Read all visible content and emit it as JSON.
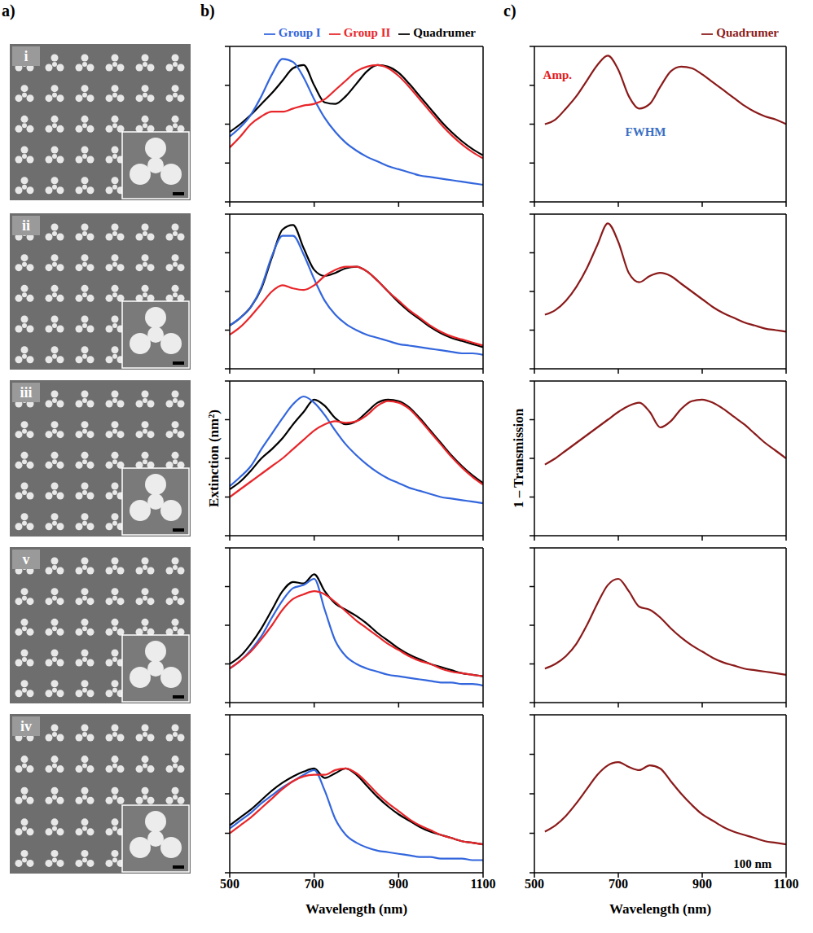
{
  "panel_labels": [
    "a)",
    "b)",
    "c)"
  ],
  "panel_a": {
    "images": [
      "i",
      "ii",
      "iii",
      "v",
      "iv"
    ]
  },
  "chart_data": [
    {
      "type": "line",
      "legend": "top right",
      "tick_labels": false,
      "xlim": [
        500,
        1100
      ],
      "xticks": [
        500,
        700,
        900,
        1100
      ],
      "ylim": [
        0,
        1
      ],
      "yticks": [
        0,
        0.25,
        0.5,
        0.75,
        1
      ],
      "x": [
        500,
        525,
        550,
        575,
        600,
        625,
        650,
        675,
        700,
        725,
        750,
        775,
        800,
        825,
        850,
        875,
        900,
        925,
        950,
        975,
        1000,
        1025,
        1050,
        1075,
        1100
      ],
      "series": [
        {
          "name": "Quadrumer",
          "color": "#000000",
          "values": [
            0.45,
            0.5,
            0.56,
            0.63,
            0.7,
            0.78,
            0.86,
            0.88,
            0.75,
            0.64,
            0.63,
            0.68,
            0.76,
            0.84,
            0.88,
            0.87,
            0.83,
            0.76,
            0.68,
            0.6,
            0.52,
            0.45,
            0.39,
            0.34,
            0.3
          ]
        },
        {
          "name": "Group I",
          "color": "#3366dd",
          "values": [
            0.42,
            0.48,
            0.56,
            0.68,
            0.82,
            0.92,
            0.9,
            0.8,
            0.66,
            0.54,
            0.45,
            0.38,
            0.33,
            0.29,
            0.26,
            0.23,
            0.21,
            0.19,
            0.17,
            0.16,
            0.15,
            0.14,
            0.13,
            0.12,
            0.11
          ]
        },
        {
          "name": "Group II",
          "color": "#e8262a",
          "values": [
            0.35,
            0.42,
            0.5,
            0.55,
            0.58,
            0.58,
            0.6,
            0.62,
            0.63,
            0.66,
            0.72,
            0.78,
            0.84,
            0.87,
            0.88,
            0.86,
            0.81,
            0.74,
            0.66,
            0.58,
            0.5,
            0.43,
            0.37,
            0.32,
            0.28
          ]
        }
      ]
    },
    {
      "type": "line",
      "tick_labels": false,
      "xlim": [
        500,
        1100
      ],
      "xticks": [
        500,
        700,
        900,
        1100
      ],
      "ylim": [
        0,
        1
      ],
      "yticks": [
        0,
        0.25,
        0.5,
        0.75,
        1
      ],
      "x": [
        500,
        525,
        550,
        575,
        600,
        625,
        650,
        675,
        700,
        725,
        750,
        775,
        800,
        825,
        850,
        875,
        900,
        925,
        950,
        975,
        1000,
        1025,
        1050,
        1075,
        1100
      ],
      "series": [
        {
          "name": "Quadrumer",
          "color": "#000000",
          "values": [
            0.28,
            0.33,
            0.4,
            0.52,
            0.72,
            0.9,
            0.93,
            0.78,
            0.64,
            0.6,
            0.62,
            0.65,
            0.66,
            0.63,
            0.57,
            0.5,
            0.43,
            0.37,
            0.32,
            0.27,
            0.23,
            0.2,
            0.18,
            0.16,
            0.14
          ]
        },
        {
          "name": "Group I",
          "color": "#3366dd",
          "values": [
            0.28,
            0.33,
            0.4,
            0.53,
            0.73,
            0.86,
            0.86,
            0.74,
            0.58,
            0.44,
            0.35,
            0.29,
            0.25,
            0.22,
            0.2,
            0.18,
            0.16,
            0.15,
            0.14,
            0.13,
            0.12,
            0.11,
            0.1,
            0.1,
            0.09
          ]
        },
        {
          "name": "Group II",
          "color": "#e8262a",
          "values": [
            0.22,
            0.27,
            0.34,
            0.42,
            0.5,
            0.54,
            0.52,
            0.51,
            0.54,
            0.6,
            0.64,
            0.66,
            0.66,
            0.63,
            0.57,
            0.5,
            0.44,
            0.38,
            0.33,
            0.28,
            0.24,
            0.21,
            0.19,
            0.17,
            0.15
          ]
        }
      ]
    },
    {
      "type": "line",
      "tick_labels": false,
      "ylabel": "Extinction (nm²)",
      "xlim": [
        500,
        1100
      ],
      "xticks": [
        500,
        700,
        900,
        1100
      ],
      "ylim": [
        0,
        1
      ],
      "yticks": [
        0,
        0.25,
        0.5,
        0.75,
        1
      ],
      "x": [
        500,
        525,
        550,
        575,
        600,
        625,
        650,
        675,
        700,
        725,
        750,
        775,
        800,
        825,
        850,
        875,
        900,
        925,
        950,
        975,
        1000,
        1025,
        1050,
        1075,
        1100
      ],
      "series": [
        {
          "name": "Quadrumer",
          "color": "#000000",
          "values": [
            0.3,
            0.35,
            0.42,
            0.5,
            0.56,
            0.63,
            0.72,
            0.8,
            0.88,
            0.84,
            0.76,
            0.72,
            0.74,
            0.8,
            0.86,
            0.88,
            0.87,
            0.83,
            0.76,
            0.68,
            0.6,
            0.52,
            0.45,
            0.39,
            0.34
          ]
        },
        {
          "name": "Group I",
          "color": "#3366dd",
          "values": [
            0.32,
            0.38,
            0.45,
            0.56,
            0.66,
            0.76,
            0.85,
            0.9,
            0.86,
            0.78,
            0.68,
            0.59,
            0.52,
            0.46,
            0.41,
            0.37,
            0.34,
            0.31,
            0.29,
            0.27,
            0.25,
            0.24,
            0.23,
            0.22,
            0.21
          ]
        },
        {
          "name": "Group II",
          "color": "#e8262a",
          "values": [
            0.25,
            0.3,
            0.35,
            0.4,
            0.45,
            0.5,
            0.56,
            0.62,
            0.68,
            0.72,
            0.74,
            0.73,
            0.74,
            0.78,
            0.84,
            0.87,
            0.86,
            0.82,
            0.75,
            0.67,
            0.59,
            0.51,
            0.44,
            0.38,
            0.33
          ]
        }
      ]
    },
    {
      "type": "line",
      "tick_labels": false,
      "xlim": [
        500,
        1100
      ],
      "xticks": [
        500,
        700,
        900,
        1100
      ],
      "ylim": [
        0,
        1
      ],
      "yticks": [
        0,
        0.25,
        0.5,
        0.75,
        1
      ],
      "x": [
        500,
        525,
        550,
        575,
        600,
        625,
        650,
        675,
        700,
        725,
        750,
        775,
        800,
        825,
        850,
        875,
        900,
        925,
        950,
        975,
        1000,
        1025,
        1050,
        1075,
        1100
      ],
      "series": [
        {
          "name": "Quadrumer",
          "color": "#000000",
          "values": [
            0.25,
            0.3,
            0.38,
            0.48,
            0.6,
            0.72,
            0.78,
            0.77,
            0.83,
            0.72,
            0.64,
            0.6,
            0.56,
            0.51,
            0.45,
            0.4,
            0.35,
            0.31,
            0.28,
            0.25,
            0.23,
            0.21,
            0.19,
            0.18,
            0.17
          ]
        },
        {
          "name": "Group I",
          "color": "#3366dd",
          "values": [
            0.22,
            0.27,
            0.34,
            0.43,
            0.55,
            0.66,
            0.74,
            0.76,
            0.8,
            0.6,
            0.4,
            0.3,
            0.25,
            0.22,
            0.2,
            0.18,
            0.17,
            0.16,
            0.15,
            0.14,
            0.13,
            0.13,
            0.12,
            0.12,
            0.11
          ]
        },
        {
          "name": "Group II",
          "color": "#e8262a",
          "values": [
            0.22,
            0.27,
            0.33,
            0.41,
            0.5,
            0.6,
            0.67,
            0.7,
            0.72,
            0.7,
            0.65,
            0.59,
            0.53,
            0.48,
            0.43,
            0.38,
            0.34,
            0.3,
            0.27,
            0.25,
            0.22,
            0.2,
            0.19,
            0.18,
            0.17
          ]
        }
      ]
    },
    {
      "type": "line",
      "tick_labels": "x",
      "xlabel": "Wavelength (nm)",
      "xlim": [
        500,
        1100
      ],
      "xticks": [
        500,
        700,
        900,
        1100
      ],
      "ylim": [
        0,
        1
      ],
      "yticks": [
        0,
        0.25,
        0.5,
        0.75,
        1
      ],
      "x": [
        500,
        525,
        550,
        575,
        600,
        625,
        650,
        675,
        700,
        725,
        750,
        775,
        800,
        825,
        850,
        875,
        900,
        925,
        950,
        975,
        1000,
        1025,
        1050,
        1075,
        1100
      ],
      "series": [
        {
          "name": "Quadrumer",
          "color": "#000000",
          "values": [
            0.3,
            0.35,
            0.4,
            0.46,
            0.52,
            0.57,
            0.61,
            0.64,
            0.66,
            0.6,
            0.63,
            0.66,
            0.62,
            0.55,
            0.48,
            0.42,
            0.37,
            0.33,
            0.29,
            0.26,
            0.24,
            0.22,
            0.2,
            0.19,
            0.18
          ]
        },
        {
          "name": "Group I",
          "color": "#3366dd",
          "values": [
            0.28,
            0.33,
            0.38,
            0.44,
            0.49,
            0.54,
            0.58,
            0.62,
            0.65,
            0.52,
            0.34,
            0.24,
            0.19,
            0.16,
            0.14,
            0.13,
            0.12,
            0.11,
            0.1,
            0.1,
            0.09,
            0.09,
            0.09,
            0.08,
            0.08
          ]
        },
        {
          "name": "Group II",
          "color": "#e8262a",
          "values": [
            0.25,
            0.3,
            0.35,
            0.41,
            0.47,
            0.53,
            0.58,
            0.61,
            0.62,
            0.62,
            0.65,
            0.66,
            0.63,
            0.57,
            0.5,
            0.44,
            0.39,
            0.34,
            0.3,
            0.27,
            0.24,
            0.22,
            0.2,
            0.19,
            0.18
          ]
        }
      ]
    },
    {
      "type": "line",
      "legend": "top right",
      "tick_labels": false,
      "xlim": [
        500,
        1100
      ],
      "xticks": [
        500,
        700,
        900,
        1100
      ],
      "ylim": [
        0,
        1
      ],
      "yticks": [
        0,
        0.25,
        0.5,
        0.75,
        1
      ],
      "annotations": [
        {
          "text": "Amp.",
          "x": 555,
          "y": 0.82,
          "color": "#e41a1c"
        },
        {
          "text": "FWHM",
          "x": 765,
          "y": 0.45,
          "color": "#3a6fc4"
        }
      ],
      "x": [
        500,
        525,
        550,
        575,
        600,
        625,
        650,
        675,
        700,
        725,
        750,
        775,
        800,
        825,
        850,
        875,
        900,
        925,
        950,
        975,
        1000,
        1025,
        1050,
        1075,
        1100
      ],
      "series": [
        {
          "name": "Quadrumer",
          "color": "#8b1a1a",
          "values": [
            null,
            0.5,
            0.53,
            0.6,
            0.68,
            0.78,
            0.88,
            0.94,
            0.85,
            0.68,
            0.6,
            0.63,
            0.74,
            0.84,
            0.87,
            0.86,
            0.82,
            0.77,
            0.72,
            0.67,
            0.62,
            0.58,
            0.55,
            0.53,
            0.5
          ]
        }
      ]
    },
    {
      "type": "line",
      "tick_labels": false,
      "xlim": [
        500,
        1100
      ],
      "xticks": [
        500,
        700,
        900,
        1100
      ],
      "ylim": [
        0,
        1
      ],
      "yticks": [
        0,
        0.25,
        0.5,
        0.75,
        1
      ],
      "x": [
        500,
        525,
        550,
        575,
        600,
        625,
        650,
        675,
        700,
        725,
        750,
        775,
        800,
        825,
        850,
        875,
        900,
        925,
        950,
        975,
        1000,
        1025,
        1050,
        1075,
        1100
      ],
      "series": [
        {
          "name": "Quadrumer",
          "color": "#8b1a1a",
          "values": [
            null,
            0.35,
            0.38,
            0.44,
            0.53,
            0.65,
            0.8,
            0.94,
            0.82,
            0.62,
            0.56,
            0.6,
            0.62,
            0.6,
            0.55,
            0.5,
            0.45,
            0.4,
            0.36,
            0.33,
            0.3,
            0.28,
            0.26,
            0.25,
            0.24
          ]
        }
      ]
    },
    {
      "type": "line",
      "tick_labels": false,
      "ylabel": "1 – Transmission",
      "xlim": [
        500,
        1100
      ],
      "xticks": [
        500,
        700,
        900,
        1100
      ],
      "ylim": [
        0,
        1
      ],
      "yticks": [
        0,
        0.25,
        0.5,
        0.75,
        1
      ],
      "x": [
        500,
        525,
        550,
        575,
        600,
        625,
        650,
        675,
        700,
        725,
        750,
        775,
        800,
        825,
        850,
        875,
        900,
        925,
        950,
        975,
        1000,
        1025,
        1050,
        1075,
        1100
      ],
      "series": [
        {
          "name": "Quadrumer",
          "color": "#8b1a1a",
          "values": [
            null,
            0.46,
            0.5,
            0.55,
            0.6,
            0.65,
            0.7,
            0.75,
            0.8,
            0.84,
            0.86,
            0.8,
            0.7,
            0.74,
            0.82,
            0.87,
            0.88,
            0.86,
            0.82,
            0.77,
            0.72,
            0.66,
            0.6,
            0.55,
            0.5
          ]
        }
      ]
    },
    {
      "type": "line",
      "tick_labels": false,
      "xlim": [
        500,
        1100
      ],
      "xticks": [
        500,
        700,
        900,
        1100
      ],
      "ylim": [
        0,
        1
      ],
      "yticks": [
        0,
        0.25,
        0.5,
        0.75,
        1
      ],
      "x": [
        500,
        525,
        550,
        575,
        600,
        625,
        650,
        675,
        700,
        725,
        750,
        775,
        800,
        825,
        850,
        875,
        900,
        925,
        950,
        975,
        1000,
        1025,
        1050,
        1075,
        1100
      ],
      "series": [
        {
          "name": "Quadrumer",
          "color": "#8b1a1a",
          "values": [
            null,
            0.22,
            0.25,
            0.3,
            0.38,
            0.5,
            0.64,
            0.76,
            0.8,
            0.72,
            0.62,
            0.6,
            0.55,
            0.48,
            0.42,
            0.37,
            0.33,
            0.29,
            0.26,
            0.24,
            0.22,
            0.21,
            0.2,
            0.19,
            0.18
          ]
        }
      ]
    },
    {
      "type": "line",
      "tick_labels": "x",
      "xlabel": "Wavelength (nm)",
      "xlim": [
        500,
        1100
      ],
      "xticks": [
        500,
        700,
        900,
        1100
      ],
      "ylim": [
        0,
        1
      ],
      "yticks": [
        0,
        0.25,
        0.5,
        0.75,
        1
      ],
      "annotations": [
        {
          "text": "100 nm",
          "x": 1020,
          "y": 0.06,
          "color": "#000000"
        }
      ],
      "x": [
        500,
        525,
        550,
        575,
        600,
        625,
        650,
        675,
        700,
        725,
        750,
        775,
        800,
        825,
        850,
        875,
        900,
        925,
        950,
        975,
        1000,
        1025,
        1050,
        1075,
        1100
      ],
      "series": [
        {
          "name": "Quadrumer",
          "color": "#8b1a1a",
          "values": [
            null,
            0.26,
            0.3,
            0.36,
            0.44,
            0.53,
            0.62,
            0.68,
            0.7,
            0.67,
            0.65,
            0.68,
            0.66,
            0.58,
            0.5,
            0.43,
            0.37,
            0.33,
            0.29,
            0.26,
            0.24,
            0.22,
            0.2,
            0.19,
            0.18
          ]
        }
      ]
    }
  ]
}
